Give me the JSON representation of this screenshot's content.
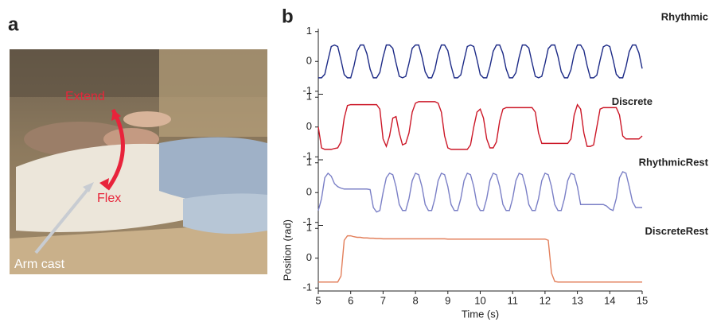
{
  "panel_labels": [
    "a",
    "b"
  ],
  "photo": {
    "annotations": [
      "Extend",
      "Flex",
      "Arm cast"
    ]
  },
  "chart_data": {
    "type": "line",
    "xlabel": "Time (s)",
    "ylabel": "Position (rad)",
    "xlim": [
      5,
      15
    ],
    "xticks": [
      5,
      6,
      7,
      8,
      9,
      10,
      11,
      12,
      13,
      14,
      15
    ],
    "ylim": [
      -1.1,
      1.1
    ],
    "yticks": [
      -1,
      0,
      1
    ],
    "x": [
      5.0,
      5.1,
      5.2,
      5.3,
      5.4,
      5.5,
      5.6,
      5.7,
      5.8,
      5.9,
      6.0,
      6.1,
      6.2,
      6.3,
      6.4,
      6.5,
      6.6,
      6.7,
      6.8,
      6.9,
      7.0,
      7.1,
      7.2,
      7.3,
      7.4,
      7.5,
      7.6,
      7.7,
      7.8,
      7.9,
      8.0,
      8.1,
      8.2,
      8.3,
      8.4,
      8.5,
      8.6,
      8.7,
      8.8,
      8.9,
      9.0,
      9.1,
      9.2,
      9.3,
      9.4,
      9.5,
      9.6,
      9.7,
      9.8,
      9.9,
      10.0,
      10.1,
      10.2,
      10.3,
      10.4,
      10.5,
      10.6,
      10.7,
      10.8,
      10.9,
      11.0,
      11.1,
      11.2,
      11.3,
      11.4,
      11.5,
      11.6,
      11.7,
      11.8,
      11.9,
      12.0,
      12.1,
      12.2,
      12.3,
      12.4,
      12.5,
      12.6,
      12.7,
      12.8,
      12.9,
      13.0,
      13.1,
      13.2,
      13.3,
      13.4,
      13.5,
      13.6,
      13.7,
      13.8,
      13.9,
      14.0,
      14.1,
      14.2,
      14.3,
      14.4,
      14.5,
      14.6,
      14.7,
      14.8,
      14.9,
      15.0
    ],
    "series": [
      {
        "name": "Rhythmic",
        "color": "#1c2a86",
        "values": [
          -0.55,
          -0.55,
          -0.43,
          0.05,
          0.5,
          0.55,
          0.5,
          0.05,
          -0.44,
          -0.55,
          -0.55,
          -0.16,
          0.35,
          0.55,
          0.55,
          0.26,
          -0.26,
          -0.55,
          -0.55,
          -0.37,
          0.15,
          0.55,
          0.55,
          0.44,
          -0.05,
          -0.5,
          -0.55,
          -0.5,
          -0.06,
          0.44,
          0.55,
          0.55,
          0.16,
          -0.35,
          -0.55,
          -0.55,
          -0.27,
          0.25,
          0.55,
          0.55,
          0.36,
          -0.15,
          -0.55,
          -0.55,
          -0.45,
          0.04,
          0.5,
          0.55,
          0.5,
          0.06,
          -0.44,
          -0.55,
          -0.55,
          -0.17,
          0.34,
          0.55,
          0.55,
          0.27,
          -0.25,
          -0.55,
          -0.55,
          -0.38,
          0.14,
          0.55,
          0.55,
          0.45,
          -0.04,
          -0.5,
          -0.55,
          -0.5,
          -0.07,
          0.43,
          0.55,
          0.55,
          0.17,
          -0.34,
          -0.55,
          -0.55,
          -0.28,
          0.25,
          0.55,
          0.55,
          0.37,
          -0.14,
          -0.55,
          -0.55,
          -0.46,
          0.04,
          0.49,
          0.55,
          0.5,
          0.07,
          -0.43,
          -0.55,
          -0.55,
          -0.18,
          0.33,
          0.55,
          0.55,
          0.28,
          -0.24
        ]
      },
      {
        "name": "Discrete",
        "color": "#cc1727",
        "values": [
          0,
          -0.7,
          -0.75,
          -0.75,
          -0.75,
          -0.72,
          -0.7,
          -0.5,
          0.3,
          0.72,
          0.75,
          0.75,
          0.75,
          0.75,
          0.75,
          0.75,
          0.75,
          0.75,
          0.75,
          0.6,
          -0.4,
          -0.65,
          -0.3,
          0.3,
          0.35,
          -0.2,
          -0.6,
          -0.55,
          -0.2,
          0.5,
          0.8,
          0.85,
          0.85,
          0.85,
          0.85,
          0.85,
          0.85,
          0.8,
          0.5,
          -0.3,
          -0.7,
          -0.75,
          -0.75,
          -0.75,
          -0.75,
          -0.75,
          -0.75,
          -0.6,
          0,
          0.5,
          0.6,
          0.3,
          -0.4,
          -0.7,
          -0.7,
          -0.5,
          0.2,
          0.6,
          0.65,
          0.65,
          0.65,
          0.65,
          0.65,
          0.65,
          0.65,
          0.65,
          0.65,
          0.5,
          -0.2,
          -0.55,
          -0.55,
          -0.55,
          -0.55,
          -0.55,
          -0.55,
          -0.55,
          -0.55,
          -0.55,
          -0.4,
          0.4,
          0.75,
          0.6,
          -0.2,
          -0.65,
          -0.65,
          -0.6,
          0,
          0.6,
          0.65,
          0.65,
          0.65,
          0.65,
          0.65,
          0.4,
          -0.3,
          -0.4,
          -0.4,
          -0.4,
          -0.4,
          -0.4,
          -0.3
        ]
      },
      {
        "name": "RhythmicRest",
        "color": "#7a7fc6",
        "values": [
          -0.6,
          -0.2,
          0.5,
          0.65,
          0.55,
          0.3,
          0.2,
          0.15,
          0.12,
          0.12,
          0.12,
          0.12,
          0.12,
          0.12,
          0.12,
          0.12,
          0.1,
          -0.5,
          -0.65,
          -0.6,
          0,
          0.5,
          0.65,
          0.6,
          0.2,
          -0.4,
          -0.6,
          -0.6,
          -0.2,
          0.4,
          0.65,
          0.6,
          0.2,
          -0.4,
          -0.6,
          -0.6,
          -0.2,
          0.4,
          0.65,
          0.6,
          0.2,
          -0.4,
          -0.6,
          -0.6,
          -0.2,
          0.4,
          0.65,
          0.6,
          0.2,
          -0.4,
          -0.6,
          -0.6,
          -0.2,
          0.4,
          0.65,
          0.6,
          0.2,
          -0.4,
          -0.6,
          -0.6,
          -0.2,
          0.4,
          0.65,
          0.6,
          0.2,
          -0.4,
          -0.6,
          -0.6,
          -0.2,
          0.4,
          0.65,
          0.6,
          0.2,
          -0.4,
          -0.6,
          -0.6,
          -0.2,
          0.4,
          0.65,
          0.6,
          0.2,
          -0.4,
          -0.4,
          -0.4,
          -0.4,
          -0.4,
          -0.4,
          -0.4,
          -0.4,
          -0.45,
          -0.55,
          -0.6,
          -0.2,
          0.5,
          0.7,
          0.65,
          0.2,
          -0.3,
          -0.5,
          -0.5,
          -0.5
        ]
      },
      {
        "name": "DiscreteRest",
        "color": "#e3805c",
        "values": [
          -0.8,
          -0.8,
          -0.8,
          -0.8,
          -0.8,
          -0.8,
          -0.8,
          -0.6,
          0.6,
          0.75,
          0.75,
          0.72,
          0.7,
          0.7,
          0.68,
          0.68,
          0.67,
          0.67,
          0.66,
          0.66,
          0.65,
          0.65,
          0.65,
          0.65,
          0.65,
          0.65,
          0.65,
          0.65,
          0.65,
          0.65,
          0.65,
          0.65,
          0.65,
          0.65,
          0.65,
          0.65,
          0.65,
          0.65,
          0.65,
          0.65,
          0.64,
          0.64,
          0.64,
          0.64,
          0.64,
          0.64,
          0.64,
          0.64,
          0.64,
          0.64,
          0.64,
          0.64,
          0.64,
          0.64,
          0.64,
          0.64,
          0.64,
          0.64,
          0.64,
          0.64,
          0.64,
          0.64,
          0.64,
          0.64,
          0.64,
          0.64,
          0.64,
          0.64,
          0.64,
          0.64,
          0.64,
          0.6,
          -0.5,
          -0.78,
          -0.8,
          -0.8,
          -0.8,
          -0.8,
          -0.8,
          -0.8,
          -0.8,
          -0.8,
          -0.8,
          -0.8,
          -0.8,
          -0.8,
          -0.8,
          -0.8,
          -0.8,
          -0.8,
          -0.8,
          -0.8,
          -0.8,
          -0.8,
          -0.8,
          -0.8,
          -0.8,
          -0.8,
          -0.8,
          -0.8,
          -0.8
        ]
      }
    ]
  }
}
